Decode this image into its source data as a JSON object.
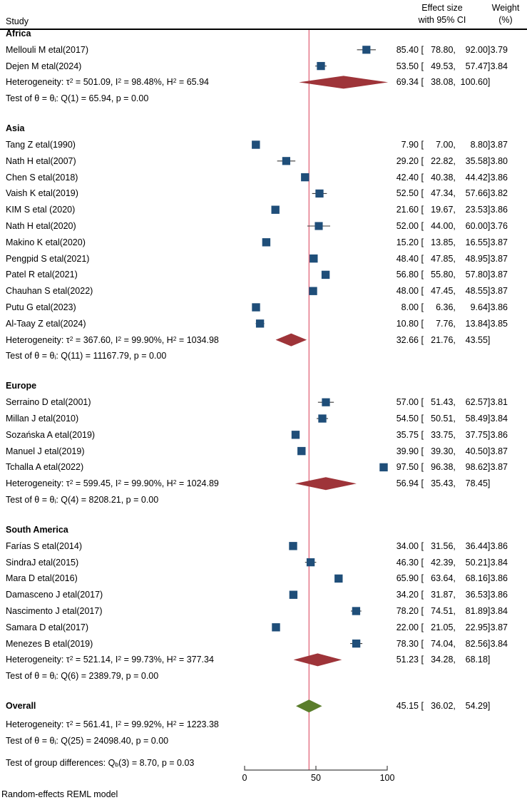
{
  "header": {
    "study": "Study",
    "effect_line1": "Effect size",
    "effect_line2": "with 95% CI",
    "weight_line1": "Weight",
    "weight_line2": "(%)"
  },
  "colors": {
    "square_blue": "#1f4e79",
    "diamond_maroon": "#9e3439",
    "diamond_green": "#5a7d2b",
    "refline_red": "#dd4b63",
    "whisker": "#3a3a3a",
    "axis": "#444444"
  },
  "chart_data": {
    "type": "forest",
    "x_ticks": [
      0,
      50,
      100
    ],
    "xlim": [
      0,
      100
    ],
    "refline": 45.15,
    "model_note": "Random-effects REML model",
    "groups": [
      {
        "name": "Africa",
        "studies": [
          {
            "label": "Mellouli M etal(2017)",
            "est": 85.4,
            "lo": 78.8,
            "hi": 92.0,
            "weight": 3.79
          },
          {
            "label": "Dejen M etal(2024)",
            "est": 53.5,
            "lo": 49.53,
            "hi": 57.47,
            "weight": 3.84
          }
        ],
        "diamond": {
          "est": 69.34,
          "lo": 38.08,
          "hi": 100.6
        },
        "het_parts": [
          [
            "Heterogeneity: τ"
          ],
          [
            "2",
            "sup"
          ],
          [
            " = 501.09, I"
          ],
          [
            "2",
            "sup"
          ],
          [
            " = 98.48%, H"
          ],
          [
            "2",
            "sup"
          ],
          [
            " = 65.94"
          ]
        ],
        "test_parts": [
          [
            "Test of θ = θ"
          ],
          [
            "i",
            "sub"
          ],
          [
            ": Q(1) = 65.94, p = 0.00"
          ]
        ]
      },
      {
        "name": "Asia",
        "studies": [
          {
            "label": "Tang Z etal(1990)",
            "est": 7.9,
            "lo": 7.0,
            "hi": 8.8,
            "weight": 3.87
          },
          {
            "label": "Nath H etal(2007)",
            "est": 29.2,
            "lo": 22.82,
            "hi": 35.58,
            "weight": 3.8
          },
          {
            "label": "Chen S etal(2018)",
            "est": 42.4,
            "lo": 40.38,
            "hi": 44.42,
            "weight": 3.86
          },
          {
            "label": "Vaish K etal(2019)",
            "est": 52.5,
            "lo": 47.34,
            "hi": 57.66,
            "weight": 3.82
          },
          {
            "label": "KIM S etal (2020)",
            "est": 21.6,
            "lo": 19.67,
            "hi": 23.53,
            "weight": 3.86
          },
          {
            "label": "Nath H etal(2020)",
            "est": 52.0,
            "lo": 44.0,
            "hi": 60.0,
            "weight": 3.76
          },
          {
            "label": "Makino K etal(2020)",
            "est": 15.2,
            "lo": 13.85,
            "hi": 16.55,
            "weight": 3.87
          },
          {
            "label": "Pengpid S etal(2021)",
            "est": 48.4,
            "lo": 47.85,
            "hi": 48.95,
            "weight": 3.87
          },
          {
            "label": "Patel R etal(2021)",
            "est": 56.8,
            "lo": 55.8,
            "hi": 57.8,
            "weight": 3.87
          },
          {
            "label": "Chauhan S etal(2022)",
            "est": 48.0,
            "lo": 47.45,
            "hi": 48.55,
            "weight": 3.87
          },
          {
            "label": "Putu G etal(2023)",
            "est": 8.0,
            "lo": 6.36,
            "hi": 9.64,
            "weight": 3.86
          },
          {
            "label": "Al-Taay Z etal(2024)",
            "est": 10.8,
            "lo": 7.76,
            "hi": 13.84,
            "weight": 3.85
          }
        ],
        "diamond": {
          "est": 32.66,
          "lo": 21.76,
          "hi": 43.55
        },
        "het_parts": [
          [
            "Heterogeneity: τ"
          ],
          [
            "2",
            "sup"
          ],
          [
            " = 367.60, I"
          ],
          [
            "2",
            "sup"
          ],
          [
            " = 99.90%, H"
          ],
          [
            "2",
            "sup"
          ],
          [
            " = 1034.98"
          ]
        ],
        "test_parts": [
          [
            "Test of θ = θ"
          ],
          [
            "i",
            "sub"
          ],
          [
            ": Q(11) = 11167.79, p = 0.00"
          ]
        ]
      },
      {
        "name": "Europe",
        "studies": [
          {
            "label": "Serraino D etal(2001)",
            "est": 57.0,
            "lo": 51.43,
            "hi": 62.57,
            "weight": 3.81
          },
          {
            "label": "Millan J etal(2010)",
            "est": 54.5,
            "lo": 50.51,
            "hi": 58.49,
            "weight": 3.84
          },
          {
            "label": "Sozańska A etal(2019)",
            "est": 35.75,
            "lo": 33.75,
            "hi": 37.75,
            "weight": 3.86
          },
          {
            "label": "Manuel J etal(2019)",
            "est": 39.9,
            "lo": 39.3,
            "hi": 40.5,
            "weight": 3.87
          },
          {
            "label": "Tchalla A etal(2022)",
            "est": 97.5,
            "lo": 96.38,
            "hi": 98.62,
            "weight": 3.87
          }
        ],
        "diamond": {
          "est": 56.94,
          "lo": 35.43,
          "hi": 78.45
        },
        "het_parts": [
          [
            "Heterogeneity: τ"
          ],
          [
            "2",
            "sup"
          ],
          [
            " = 599.45, I"
          ],
          [
            "2",
            "sup"
          ],
          [
            " = 99.90%, H"
          ],
          [
            "2",
            "sup"
          ],
          [
            " = 1024.89"
          ]
        ],
        "test_parts": [
          [
            "Test of θ = θ"
          ],
          [
            "i",
            "sub"
          ],
          [
            ": Q(4) = 8208.21, p = 0.00"
          ]
        ]
      },
      {
        "name": "South America",
        "studies": [
          {
            "label": "Farías S etal(2014)",
            "est": 34.0,
            "lo": 31.56,
            "hi": 36.44,
            "weight": 3.86
          },
          {
            "label": "SindraJ etal(2015)",
            "est": 46.3,
            "lo": 42.39,
            "hi": 50.21,
            "weight": 3.84
          },
          {
            "label": "Mara D etal(2016)",
            "est": 65.9,
            "lo": 63.64,
            "hi": 68.16,
            "weight": 3.86
          },
          {
            "label": "Damasceno J etal(2017)",
            "est": 34.2,
            "lo": 31.87,
            "hi": 36.53,
            "weight": 3.86
          },
          {
            "label": "Nascimento J etal(2017)",
            "est": 78.2,
            "lo": 74.51,
            "hi": 81.89,
            "weight": 3.84
          },
          {
            "label": "Samara D etal(2017)",
            "est": 22.0,
            "lo": 21.05,
            "hi": 22.95,
            "weight": 3.87
          },
          {
            "label": "Menezes B etal(2019)",
            "est": 78.3,
            "lo": 74.04,
            "hi": 82.56,
            "weight": 3.84
          }
        ],
        "diamond": {
          "est": 51.23,
          "lo": 34.28,
          "hi": 68.18
        },
        "het_parts": [
          [
            "Heterogeneity: τ"
          ],
          [
            "2",
            "sup"
          ],
          [
            " = 521.14, I"
          ],
          [
            "2",
            "sup"
          ],
          [
            " = 99.73%, H"
          ],
          [
            "2",
            "sup"
          ],
          [
            " = 377.34"
          ]
        ],
        "test_parts": [
          [
            "Test of θ = θ"
          ],
          [
            "i",
            "sub"
          ],
          [
            ": Q(6) = 2389.79, p = 0.00"
          ]
        ]
      }
    ],
    "overall": {
      "label": "Overall",
      "diamond": {
        "est": 45.15,
        "lo": 36.02,
        "hi": 54.29
      },
      "het_parts": [
        [
          "Heterogeneity: τ"
        ],
        [
          "2",
          "sup"
        ],
        [
          " = 561.41, I"
        ],
        [
          "2",
          "sup"
        ],
        [
          " = 99.92%, H"
        ],
        [
          "2",
          "sup"
        ],
        [
          " = 1223.38"
        ]
      ],
      "test_parts": [
        [
          "Test of θ = θ"
        ],
        [
          "i",
          "sub"
        ],
        [
          ": Q(25) = 24098.40, p = 0.00"
        ]
      ],
      "group_diff_parts": [
        [
          "Test of group differences: Q"
        ],
        [
          "b",
          "sub"
        ],
        [
          "(3) = 8.70, p = 0.03"
        ]
      ]
    }
  }
}
